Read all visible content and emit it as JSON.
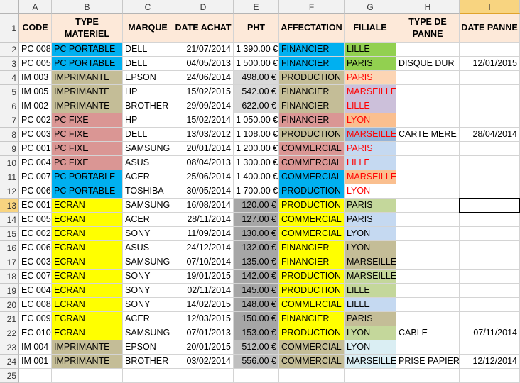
{
  "columns": [
    "A",
    "B",
    "C",
    "D",
    "E",
    "F",
    "G",
    "H",
    "I"
  ],
  "active_column": "I",
  "active_row": 13,
  "headers": [
    "CODE",
    "TYPE MATERIEL",
    "MARQUE",
    "DATE ACHAT",
    "PHT",
    "AFFECTATION",
    "FILIALE",
    "TYPE DE PANNE",
    "DATE PANNE"
  ],
  "colors": {
    "header_bg": "#fde9d9",
    "pc_portable": "#00b0f0",
    "imprimante": "#c4bd97",
    "pc_fixe": "#da9694",
    "ecran": "#ffff00",
    "pht_light": "#d9d9d9",
    "pht_mid": "#bfbfbf",
    "pht_dark": "#a6a6a6",
    "financier": "#00b0f0",
    "production": "#c4bd97",
    "commercial": "#da9694",
    "red_text": "#ff0000",
    "lille_green": "#92d050",
    "peach": "#fcd5b4",
    "lavender": "#ccc0da",
    "orange": "#fabf8f",
    "light_blue": "#c5d9f1",
    "sage": "#c4d79b",
    "tan": "#c4bd97",
    "pale_blue": "#daeef3",
    "mid_blue": "#95b3d7"
  },
  "rows": [
    {
      "n": 2,
      "code": "PC 008",
      "type": "PC PORTABLE",
      "marque": "DELL",
      "date": "21/07/2014",
      "pht": "1 390.00 €",
      "aff": "FINANCIER",
      "fil": "LILLE",
      "panne": "",
      "dpanne": ""
    },
    {
      "n": 3,
      "code": "PC 005",
      "type": "PC PORTABLE",
      "marque": "DELL",
      "date": "04/05/2013",
      "pht": "1 500.00 €",
      "aff": "FINANCIER",
      "fil": "PARIS",
      "panne": "DISQUE DUR",
      "dpanne": "12/01/2015"
    },
    {
      "n": 4,
      "code": "IM 003",
      "type": "IMPRIMANTE",
      "marque": "EPSON",
      "date": "24/06/2014",
      "pht": "498.00 €",
      "aff": "PRODUCTION",
      "fil": "PARIS",
      "panne": "",
      "dpanne": ""
    },
    {
      "n": 5,
      "code": "IM 005",
      "type": "IMPRIMANTE",
      "marque": "HP",
      "date": "15/02/2015",
      "pht": "542.00 €",
      "aff": "FINANCIER",
      "fil": "MARSEILLE",
      "panne": "",
      "dpanne": ""
    },
    {
      "n": 6,
      "code": "IM 002",
      "type": "IMPRIMANTE",
      "marque": "BROTHER",
      "date": "29/09/2014",
      "pht": "622.00 €",
      "aff": "FINANCIER",
      "fil": "LILLE",
      "panne": "",
      "dpanne": ""
    },
    {
      "n": 7,
      "code": "PC 002",
      "type": "PC FIXE",
      "marque": "HP",
      "date": "15/02/2014",
      "pht": "1 050.00 €",
      "aff": "FINANCIER",
      "fil": "LYON",
      "panne": "",
      "dpanne": ""
    },
    {
      "n": 8,
      "code": "PC 003",
      "type": "PC FIXE",
      "marque": "DELL",
      "date": "13/03/2012",
      "pht": "1 108.00 €",
      "aff": "PRODUCTION",
      "fil": "MARSEILLE",
      "panne": "CARTE MERE",
      "dpanne": "28/04/2014"
    },
    {
      "n": 9,
      "code": "PC 001",
      "type": "PC FIXE",
      "marque": "SAMSUNG",
      "date": "20/01/2014",
      "pht": "1 200.00 €",
      "aff": "COMMERCIAL",
      "fil": "PARIS",
      "panne": "",
      "dpanne": ""
    },
    {
      "n": 10,
      "code": "PC 004",
      "type": "PC FIXE",
      "marque": "ASUS",
      "date": "08/04/2013",
      "pht": "1 300.00 €",
      "aff": "COMMERCIAL",
      "fil": "LILLE",
      "panne": "",
      "dpanne": ""
    },
    {
      "n": 11,
      "code": "PC 007",
      "type": "PC PORTABLE",
      "marque": "ACER",
      "date": "25/06/2014",
      "pht": "1 400.00 €",
      "aff": "COMMERCIAL",
      "fil": "MARSEILLE",
      "panne": "",
      "dpanne": ""
    },
    {
      "n": 12,
      "code": "PC 006",
      "type": "PC PORTABLE",
      "marque": "TOSHIBA",
      "date": "30/05/2014",
      "pht": "1 700.00 €",
      "aff": "PRODUCTION",
      "fil": "LYON",
      "panne": "",
      "dpanne": ""
    },
    {
      "n": 13,
      "code": "EC 001",
      "type": "ECRAN",
      "marque": "SAMSUNG",
      "date": "16/08/2014",
      "pht": "120.00 €",
      "aff": "PRODUCTION",
      "fil": "PARIS",
      "panne": "",
      "dpanne": ""
    },
    {
      "n": 14,
      "code": "EC 005",
      "type": "ECRAN",
      "marque": "ACER",
      "date": "28/11/2014",
      "pht": "127.00 €",
      "aff": "COMMERCIAL",
      "fil": "PARIS",
      "panne": "",
      "dpanne": ""
    },
    {
      "n": 15,
      "code": "EC 002",
      "type": "ECRAN",
      "marque": "SONY",
      "date": "11/09/2014",
      "pht": "130.00 €",
      "aff": "COMMERCIAL",
      "fil": "LYON",
      "panne": "",
      "dpanne": ""
    },
    {
      "n": 16,
      "code": "EC 006",
      "type": "ECRAN",
      "marque": "ASUS",
      "date": "24/12/2014",
      "pht": "132.00 €",
      "aff": "FINANCIER",
      "fil": "LYON",
      "panne": "",
      "dpanne": ""
    },
    {
      "n": 17,
      "code": "EC 003",
      "type": "ECRAN",
      "marque": "SAMSUNG",
      "date": "07/10/2014",
      "pht": "135.00 €",
      "aff": "FINANCIER",
      "fil": "MARSEILLE",
      "panne": "",
      "dpanne": ""
    },
    {
      "n": 18,
      "code": "EC 007",
      "type": "ECRAN",
      "marque": "SONY",
      "date": "19/01/2015",
      "pht": "142.00 €",
      "aff": "PRODUCTION",
      "fil": "MARSEILLE",
      "panne": "",
      "dpanne": ""
    },
    {
      "n": 19,
      "code": "EC 004",
      "type": "ECRAN",
      "marque": "SONY",
      "date": "02/11/2014",
      "pht": "145.00 €",
      "aff": "PRODUCTION",
      "fil": "LILLE",
      "panne": "",
      "dpanne": ""
    },
    {
      "n": 20,
      "code": "EC 008",
      "type": "ECRAN",
      "marque": "SONY",
      "date": "14/02/2015",
      "pht": "148.00 €",
      "aff": "COMMERCIAL",
      "fil": "LILLE",
      "panne": "",
      "dpanne": ""
    },
    {
      "n": 21,
      "code": "EC 009",
      "type": "ECRAN",
      "marque": "ACER",
      "date": "12/03/2015",
      "pht": "150.00 €",
      "aff": "FINANCIER",
      "fil": "PARIS",
      "panne": "",
      "dpanne": ""
    },
    {
      "n": 22,
      "code": "EC 010",
      "type": "ECRAN",
      "marque": "SAMSUNG",
      "date": "07/01/2013",
      "pht": "153.00 €",
      "aff": "PRODUCTION",
      "fil": "LYON",
      "panne": "CABLE",
      "dpanne": "07/11/2014"
    },
    {
      "n": 23,
      "code": "IM 004",
      "type": "IMPRIMANTE",
      "marque": "EPSON",
      "date": "20/01/2015",
      "pht": "512.00 €",
      "aff": "COMMERCIAL",
      "fil": "LYON",
      "panne": "",
      "dpanne": ""
    },
    {
      "n": 24,
      "code": "IM 001",
      "type": "IMPRIMANTE",
      "marque": "BROTHER",
      "date": "03/02/2014",
      "pht": "556.00 €",
      "aff": "COMMERCIAL",
      "fil": "MARSEILLE",
      "panne": "PRISE PAPIER",
      "dpanne": "12/12/2014"
    },
    {
      "n": 25,
      "code": "",
      "type": "",
      "marque": "",
      "date": "",
      "pht": "",
      "aff": "",
      "fil": "",
      "panne": "",
      "dpanne": ""
    }
  ]
}
